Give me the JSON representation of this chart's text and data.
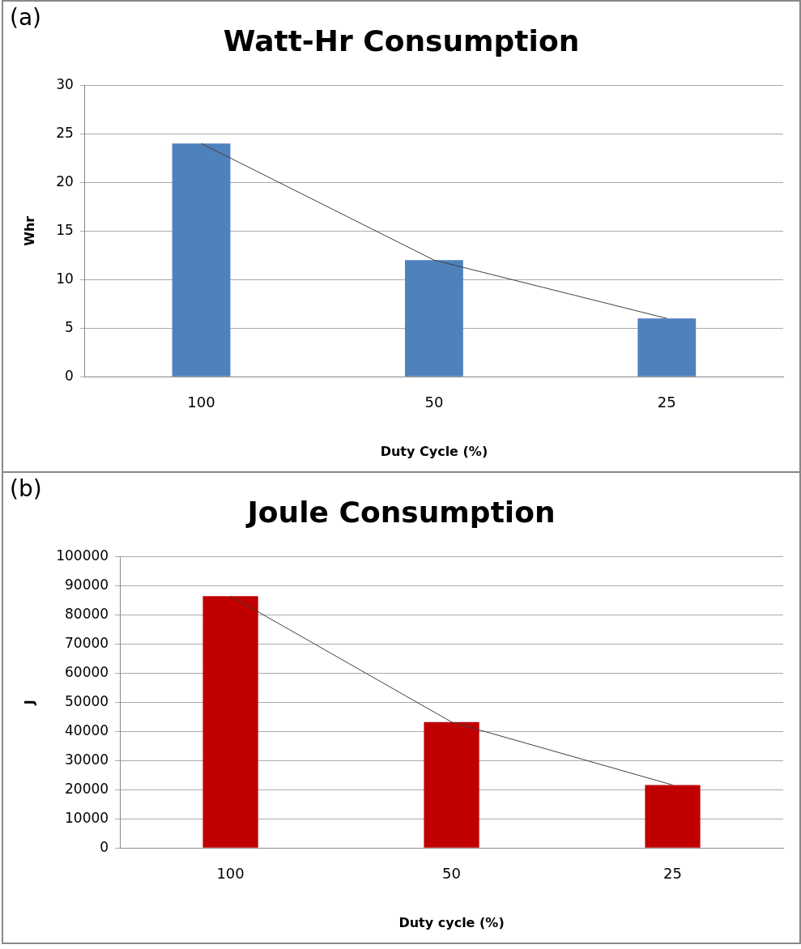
{
  "chart_data": [
    {
      "type": "bar",
      "title": "Watt-Hr Consumption",
      "xlabel": "Duty Cycle (%)",
      "ylabel": "Whr",
      "annotations": [
        "(a)"
      ],
      "categories": [
        "100",
        "50",
        "25"
      ],
      "ylim": [
        0,
        30
      ],
      "yticks": [
        0,
        5,
        10,
        15,
        20,
        25,
        30
      ],
      "grid": "y",
      "legend": false,
      "series": [
        {
          "color": "#4f81bd",
          "values": [
            24,
            12,
            6
          ]
        },
        {
          "type": "line",
          "color": "#404040",
          "marker": "none",
          "line_style": "solid",
          "values": [
            24,
            12,
            6
          ]
        }
      ]
    },
    {
      "type": "bar",
      "title": "Joule Consumption",
      "xlabel": "Duty cycle (%)",
      "ylabel": "J",
      "annotations": [
        "(b)"
      ],
      "categories": [
        "100",
        "50",
        "25"
      ],
      "ylim": [
        0,
        100000
      ],
      "yticks": [
        0,
        10000,
        20000,
        30000,
        40000,
        50000,
        60000,
        70000,
        80000,
        90000,
        100000
      ],
      "grid": "y",
      "legend": false,
      "series": [
        {
          "color": "#c00000",
          "values": [
            86400,
            43200,
            21600
          ]
        },
        {
          "type": "line",
          "color": "#404040",
          "marker": "none",
          "line_style": "solid",
          "values": [
            86400,
            43200,
            21600
          ]
        }
      ]
    }
  ]
}
